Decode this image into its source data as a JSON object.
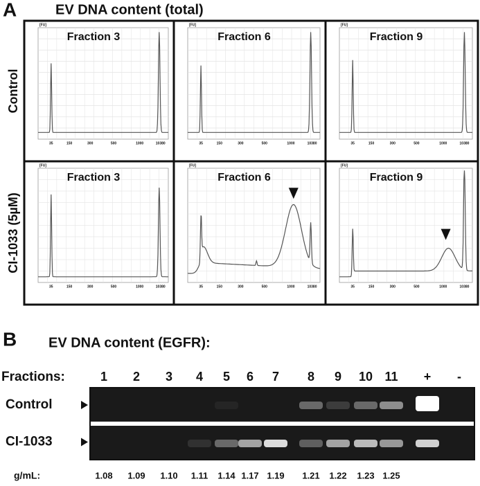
{
  "panel_a": {
    "label": "A",
    "title": "EV DNA content (total)",
    "y_unit": "[FU]",
    "x_ticks": [
      "35",
      "150",
      "300",
      "500",
      "1000",
      "10380"
    ],
    "rows": [
      {
        "label": "Control",
        "fractions": [
          "Fraction 3",
          "Fraction 6",
          "Fraction 9"
        ]
      },
      {
        "label": "CI-1033 (5µM)",
        "fractions": [
          "Fraction 3",
          "Fraction 6",
          "Fraction 9"
        ]
      }
    ]
  },
  "panel_b": {
    "label": "B",
    "title": "EV DNA content (EGFR):",
    "fractions_label": "Fractions:",
    "lanes": [
      "1",
      "2",
      "3",
      "4",
      "5",
      "6",
      "7",
      "8",
      "9",
      "10",
      "11",
      "+",
      "-"
    ],
    "rows": [
      "Control",
      "CI-1033"
    ],
    "density_label": "g/mL:",
    "densities": [
      "1.08",
      "1.09",
      "1.10",
      "1.11",
      "1.14",
      "1.17",
      "1.19",
      "1.21",
      "1.22",
      "1.23",
      "1.25"
    ]
  }
}
